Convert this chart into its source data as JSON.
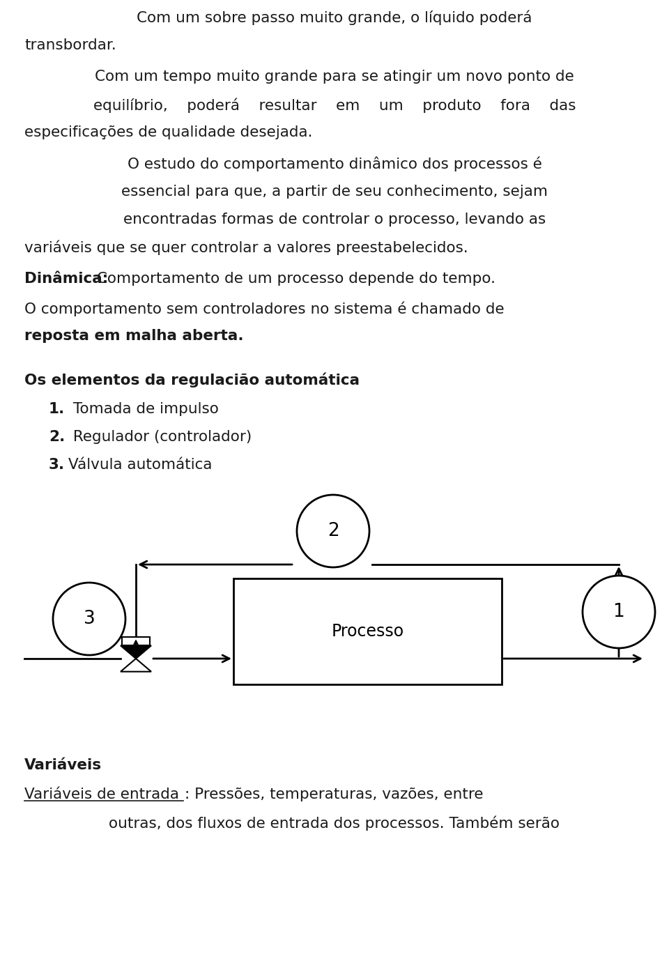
{
  "bg_color": "#ffffff",
  "text_color": "#1a1a1a",
  "font_family": "DejaVu Sans",
  "line1": "Com um sobre passo muito grande, o líquido poderá",
  "line2": "transbordar.",
  "line3": "Com um tempo muito grande para se atingir um novo ponto de",
  "line4": "equilíbrio,    poderá    resultar    em    um    produto    fora    das",
  "line5": "especificações de qualidade desejada.",
  "line6": "O estudo do comportamento dinâmico dos processos é",
  "line7": "essencial para que, a partir de seu conhecimento, sejam",
  "line8": "encontradas formas de controlar o processo, levando as",
  "line9": "variáveis que se quer controlar a valores preestabelecidos.",
  "line10_bold": "Dinâmica:",
  "line10_rest": " Comportamento de um processo depende do tempo.",
  "line11": "O comportamento sem controladores no sistema é chamado de",
  "line12_bold": "reposta em malha aberta.",
  "section_title": "Os elementos da regulacião automática",
  "item1_num": "1.",
  "item1_text": " Tomada de impulso",
  "item2_num": "2.",
  "item2_text": " Regulador (controlador)",
  "item3_num": "3.",
  "item3_text": "Válvula automática",
  "processo_label": "Processo",
  "variáveis_title": "Variáveis",
  "var_entrada_underline": "Variáveis de entrada",
  "var_entrada_rest": ": Pressões, temperaturas, vazões, entre",
  "var_outras": "outras, dos fluxos de entrada dos processos. Também serão",
  "fontsize": 15.5,
  "fontsize_diagram": 17,
  "fontsize_circle": 19
}
